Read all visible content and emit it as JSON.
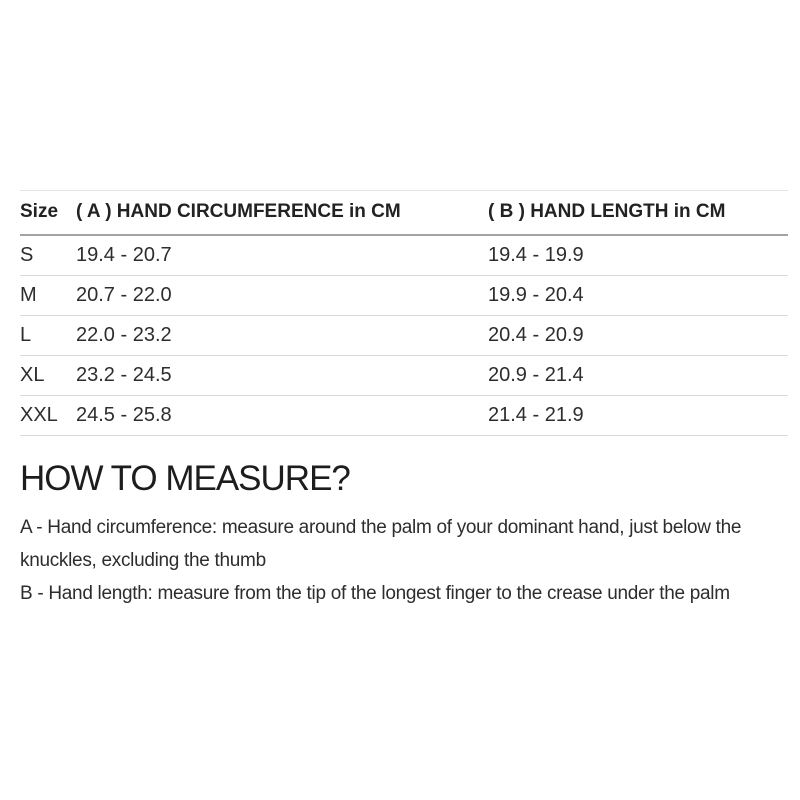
{
  "table": {
    "columns": [
      {
        "label": "Size"
      },
      {
        "label": "( A ) HAND CIRCUMFERENCE in CM"
      },
      {
        "label": "( B ) HAND LENGTH in CM"
      }
    ],
    "rows": [
      {
        "size": "S",
        "circumference": "19.4 - 20.7",
        "length": "19.4 - 19.9"
      },
      {
        "size": "M",
        "circumference": "20.7 - 22.0",
        "length": "19.9 - 20.4"
      },
      {
        "size": "L",
        "circumference": "22.0 - 23.2",
        "length": "20.4 - 20.9"
      },
      {
        "size": "XL",
        "circumference": "23.2 - 24.5",
        "length": "20.9 - 21.4"
      },
      {
        "size": "XXL",
        "circumference": "24.5 - 25.8",
        "length": "21.4 - 21.9"
      }
    ]
  },
  "how_to_measure": {
    "heading": "HOW TO MEASURE?",
    "instructions": [
      "A - Hand circumference: measure around the palm of your dominant hand, just below the knuckles, excluding the thumb",
      "B - Hand length: measure from the tip of the longest finger to the crease under the palm"
    ]
  },
  "colors": {
    "text_primary": "#2d2d2d",
    "heading_text": "#1d1d1d",
    "header_rule": "#a3a3a3",
    "row_divider": "#d9d9d9",
    "table_top_border": "#e4e4e4",
    "background": "#ffffff"
  }
}
